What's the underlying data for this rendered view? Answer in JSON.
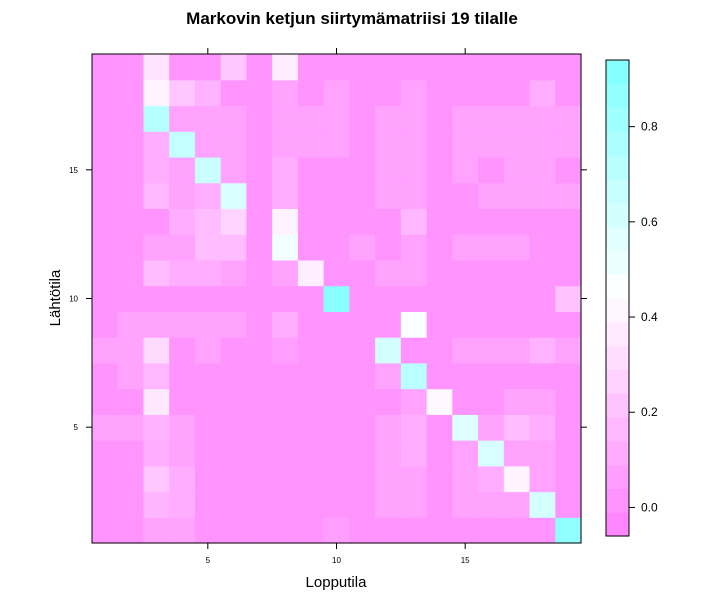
{
  "chart_data": {
    "type": "heatmap",
    "title": "Markovin ketjun siirtymämatriisi 19 tilalle",
    "xlabel": "Lopputila",
    "ylabel": "Lähtötila",
    "n_states": 19,
    "x_ticks": [
      "5",
      "10",
      "15"
    ],
    "y_ticks": [
      "5",
      "10",
      "15"
    ],
    "x_tick_values": [
      5,
      10,
      15
    ],
    "y_tick_values": [
      5,
      10,
      15
    ],
    "colorbar_ticks": [
      "0.0",
      "0.2",
      "0.4",
      "0.6",
      "0.8"
    ],
    "colorbar_tick_values": [
      0.0,
      0.2,
      0.4,
      0.6,
      0.8
    ],
    "zlim": [
      -0.06,
      0.94
    ],
    "color_low": "#ff80ff",
    "color_mid": "#ffffff",
    "color_high": "#80ffff",
    "matrix": [
      [
        0.02,
        0.02,
        0.08,
        0.08,
        0.02,
        0.02,
        0.02,
        0.02,
        0.02,
        0.06,
        0.02,
        0.02,
        0.02,
        0.02,
        0.02,
        0.02,
        0.02,
        0.02,
        0.88
      ],
      [
        0.02,
        0.02,
        0.15,
        0.12,
        0.02,
        0.02,
        0.02,
        0.02,
        0.02,
        0.02,
        0.02,
        0.08,
        0.08,
        0.02,
        0.08,
        0.08,
        0.08,
        0.62,
        0.02
      ],
      [
        0.02,
        0.02,
        0.22,
        0.12,
        0.02,
        0.02,
        0.02,
        0.02,
        0.02,
        0.02,
        0.02,
        0.08,
        0.08,
        0.02,
        0.08,
        0.12,
        0.4,
        0.08,
        0.02
      ],
      [
        0.02,
        0.02,
        0.12,
        0.08,
        0.02,
        0.02,
        0.02,
        0.02,
        0.02,
        0.02,
        0.02,
        0.08,
        0.12,
        0.02,
        0.08,
        0.6,
        0.08,
        0.08,
        0.02
      ],
      [
        0.08,
        0.08,
        0.14,
        0.08,
        0.02,
        0.02,
        0.02,
        0.02,
        0.02,
        0.02,
        0.02,
        0.08,
        0.12,
        0.02,
        0.58,
        0.08,
        0.18,
        0.12,
        0.02
      ],
      [
        0.02,
        0.02,
        0.36,
        0.02,
        0.02,
        0.02,
        0.02,
        0.02,
        0.02,
        0.02,
        0.02,
        0.02,
        0.08,
        0.42,
        0.02,
        0.02,
        0.08,
        0.08,
        0.02
      ],
      [
        0.02,
        0.08,
        0.16,
        0.02,
        0.02,
        0.02,
        0.02,
        0.02,
        0.02,
        0.02,
        0.02,
        0.08,
        0.72,
        0.02,
        0.02,
        0.02,
        0.02,
        0.02,
        0.02
      ],
      [
        0.08,
        0.08,
        0.3,
        0.02,
        0.08,
        0.02,
        0.02,
        0.06,
        0.02,
        0.02,
        0.02,
        0.62,
        0.02,
        0.02,
        0.08,
        0.08,
        0.08,
        0.14,
        0.08
      ],
      [
        0.02,
        0.08,
        0.08,
        0.08,
        0.08,
        0.08,
        0.02,
        0.12,
        0.02,
        0.02,
        0.02,
        0.02,
        0.46,
        0.02,
        0.02,
        0.02,
        0.02,
        0.02,
        0.02
      ],
      [
        0.02,
        0.02,
        0.02,
        0.02,
        0.02,
        0.02,
        0.02,
        0.02,
        0.02,
        0.9,
        0.02,
        0.02,
        0.02,
        0.02,
        0.02,
        0.02,
        0.02,
        0.02,
        0.2
      ],
      [
        0.02,
        0.02,
        0.18,
        0.12,
        0.12,
        0.08,
        0.02,
        0.08,
        0.38,
        0.02,
        0.02,
        0.08,
        0.08,
        0.02,
        0.02,
        0.02,
        0.02,
        0.02,
        0.02
      ],
      [
        0.02,
        0.02,
        0.08,
        0.08,
        0.18,
        0.18,
        0.02,
        0.5,
        0.02,
        0.02,
        0.08,
        0.02,
        0.08,
        0.02,
        0.08,
        0.08,
        0.08,
        0.02,
        0.02
      ],
      [
        0.02,
        0.02,
        0.02,
        0.12,
        0.18,
        0.28,
        0.02,
        0.4,
        0.02,
        0.02,
        0.02,
        0.02,
        0.16,
        0.02,
        0.02,
        0.02,
        0.02,
        0.02,
        0.02
      ],
      [
        0.02,
        0.02,
        0.16,
        0.08,
        0.12,
        0.6,
        0.02,
        0.12,
        0.02,
        0.02,
        0.02,
        0.08,
        0.08,
        0.02,
        0.02,
        0.08,
        0.08,
        0.08,
        0.08
      ],
      [
        0.02,
        0.02,
        0.12,
        0.08,
        0.65,
        0.08,
        0.02,
        0.12,
        0.02,
        0.02,
        0.02,
        0.08,
        0.08,
        0.02,
        0.08,
        0.02,
        0.08,
        0.08,
        0.02
      ],
      [
        0.02,
        0.02,
        0.12,
        0.68,
        0.08,
        0.08,
        0.02,
        0.08,
        0.08,
        0.08,
        0.02,
        0.08,
        0.08,
        0.02,
        0.08,
        0.08,
        0.08,
        0.08,
        0.08
      ],
      [
        0.02,
        0.02,
        0.74,
        0.08,
        0.08,
        0.08,
        0.02,
        0.08,
        0.08,
        0.08,
        0.02,
        0.08,
        0.08,
        0.02,
        0.08,
        0.08,
        0.08,
        0.08,
        0.08
      ],
      [
        0.02,
        0.02,
        0.4,
        0.22,
        0.14,
        0.02,
        0.02,
        0.08,
        0.02,
        0.08,
        0.02,
        0.02,
        0.08,
        0.02,
        0.02,
        0.02,
        0.02,
        0.12,
        0.02
      ],
      [
        0.02,
        0.02,
        0.34,
        0.02,
        0.02,
        0.22,
        0.02,
        0.38,
        0.02,
        0.02,
        0.02,
        0.02,
        0.02,
        0.02,
        0.02,
        0.02,
        0.02,
        0.02,
        0.02
      ]
    ]
  }
}
